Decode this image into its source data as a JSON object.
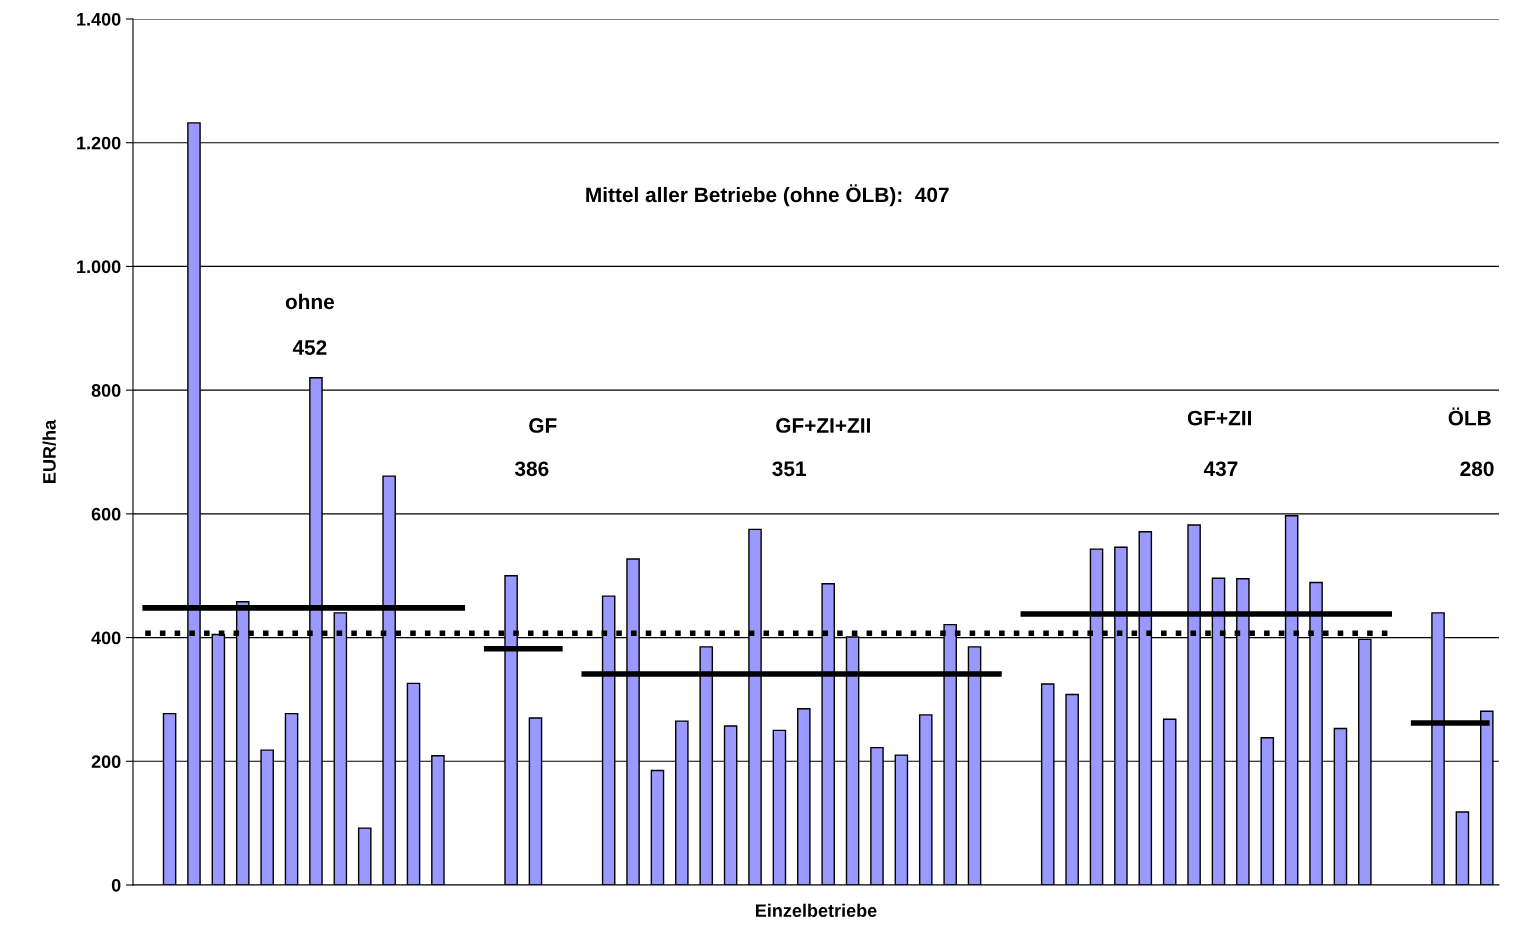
{
  "chart_data": {
    "type": "bar",
    "xlabel": "Einzelbetriebe",
    "ylabel": "EUR/ha",
    "categories": [
      null,
      null,
      null,
      null,
      null,
      null,
      null,
      null,
      null,
      null,
      null,
      null,
      null,
      null,
      null,
      null,
      null,
      null,
      null,
      null,
      null,
      null,
      null,
      null,
      null,
      null,
      null,
      null,
      null,
      null,
      null,
      null,
      null,
      null,
      null,
      null,
      null,
      null,
      null,
      null,
      null,
      null,
      null,
      null,
      null,
      null,
      null,
      null,
      null,
      null,
      null,
      null,
      null,
      null,
      null,
      null
    ],
    "ylim": [
      0,
      1400
    ],
    "yticks": [
      0,
      200,
      400,
      600,
      800,
      {
        "value": 1000,
        "label": "1.000"
      },
      {
        "value": 1200,
        "label": "1.200"
      },
      {
        "value": 1400,
        "label": "1.400"
      }
    ],
    "grid": "y",
    "legend": false,
    "series": [
      {
        "color": "#9999ff",
        "values": [
          null,
          277,
          1232,
          405,
          458,
          218,
          277,
          820,
          440,
          92,
          661,
          326,
          209,
          null,
          null,
          500,
          270,
          null,
          null,
          467,
          527,
          185,
          265,
          385,
          257,
          575,
          250,
          285,
          487,
          401,
          222,
          210,
          275,
          421,
          385,
          null,
          null,
          325,
          308,
          543,
          546,
          571,
          268,
          582,
          496,
          495,
          238,
          597,
          489,
          253,
          397,
          null,
          null,
          440,
          118,
          281
        ]
      },
      {
        "type": "line",
        "color": "#000000",
        "line_style": "solid",
        "values": [
          448,
          448,
          448,
          448,
          448,
          448,
          448,
          448,
          448,
          448,
          448,
          448,
          448,
          448,
          null,
          null,
          null,
          null,
          null,
          null,
          null,
          null,
          null,
          null,
          null,
          null,
          null,
          null,
          null,
          null,
          null,
          null,
          null,
          null,
          null,
          null,
          null,
          null,
          null,
          null,
          null,
          null,
          null,
          null,
          null,
          null,
          null,
          null,
          null,
          null,
          null,
          null,
          null,
          null,
          null,
          null
        ]
      },
      {
        "type": "line",
        "color": "#000000",
        "line_style": "solid",
        "values": [
          null,
          null,
          null,
          null,
          null,
          null,
          null,
          null,
          null,
          null,
          null,
          null,
          null,
          null,
          382,
          382,
          382,
          382,
          null,
          null,
          null,
          null,
          null,
          null,
          null,
          null,
          null,
          null,
          null,
          null,
          null,
          null,
          null,
          null,
          null,
          null,
          null,
          null,
          null,
          null,
          null,
          null,
          null,
          null,
          null,
          null,
          null,
          null,
          null,
          null,
          null,
          null,
          null,
          null,
          null,
          null
        ]
      },
      {
        "type": "line",
        "color": "#000000",
        "line_style": "solid",
        "values": [
          null,
          null,
          null,
          null,
          null,
          null,
          null,
          null,
          null,
          null,
          null,
          null,
          null,
          null,
          null,
          null,
          null,
          null,
          341,
          341,
          341,
          341,
          341,
          341,
          341,
          341,
          341,
          341,
          341,
          341,
          341,
          341,
          341,
          341,
          341,
          341,
          null,
          null,
          null,
          null,
          null,
          null,
          null,
          null,
          null,
          null,
          null,
          null,
          null,
          null,
          null,
          null,
          null,
          null,
          null,
          null
        ]
      },
      {
        "type": "line",
        "color": "#000000",
        "line_style": "solid",
        "values": [
          null,
          null,
          null,
          null,
          null,
          null,
          null,
          null,
          null,
          null,
          null,
          null,
          null,
          null,
          null,
          null,
          null,
          null,
          null,
          null,
          null,
          null,
          null,
          null,
          null,
          null,
          null,
          null,
          null,
          null,
          null,
          null,
          null,
          null,
          null,
          null,
          438,
          438,
          438,
          438,
          438,
          438,
          438,
          438,
          438,
          438,
          438,
          438,
          438,
          438,
          438,
          438,
          null,
          null,
          null,
          null
        ]
      },
      {
        "type": "line",
        "color": "#000000",
        "line_style": "solid",
        "values": [
          null,
          null,
          null,
          null,
          null,
          null,
          null,
          null,
          null,
          null,
          null,
          null,
          null,
          null,
          null,
          null,
          null,
          null,
          null,
          null,
          null,
          null,
          null,
          null,
          null,
          null,
          null,
          null,
          null,
          null,
          null,
          null,
          null,
          null,
          null,
          null,
          null,
          null,
          null,
          null,
          null,
          null,
          null,
          null,
          null,
          null,
          null,
          null,
          null,
          null,
          null,
          null,
          262,
          262,
          262,
          262
        ]
      },
      {
        "type": "line",
        "color": "#000000",
        "line_style": "dotted",
        "values": [
          407,
          407,
          407,
          407,
          407,
          407,
          407,
          407,
          407,
          407,
          407,
          407,
          407,
          407,
          407,
          407,
          407,
          407,
          407,
          407,
          407,
          407,
          407,
          407,
          407,
          407,
          407,
          407,
          407,
          407,
          407,
          407,
          407,
          407,
          407,
          407,
          407,
          407,
          407,
          407,
          407,
          407,
          407,
          407,
          407,
          407,
          407,
          407,
          407,
          407,
          407,
          407,
          null,
          null,
          null,
          null
        ]
      }
    ],
    "annotations": [
      "Mittel aller Betriebe (ohne ÖLB):  407",
      "ohne",
      "452",
      "GF",
      "386",
      "GF+ZI+ZII",
      "351",
      "GF+ZII",
      "437",
      "ÖLB",
      "280"
    ]
  }
}
